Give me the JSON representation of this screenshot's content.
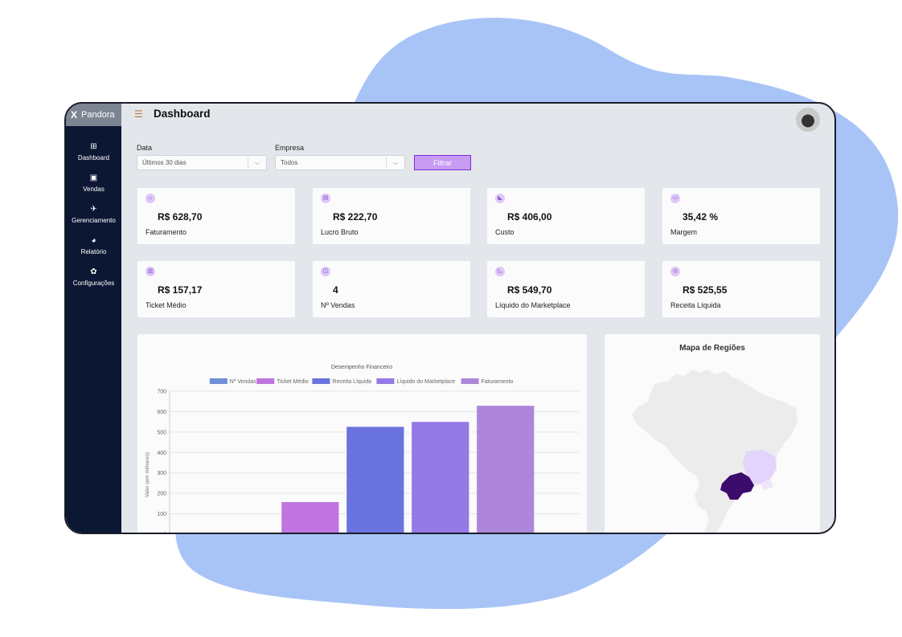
{
  "app": {
    "brand_mark": "X",
    "brand_name": "Pandora",
    "page_title": "Dashboard"
  },
  "icons": {
    "menu": "menu-icon",
    "dashboard": "grid-icon",
    "vendas": "briefcase-icon",
    "gerenciamento": "rocket-icon",
    "relatorio": "pie-chart-icon",
    "configuracoes": "settings-icon"
  },
  "sidebar": {
    "items": [
      {
        "icon": "⊞",
        "label": "Dashboard"
      },
      {
        "icon": "▣",
        "label": "Vendas"
      },
      {
        "icon": "✈",
        "label": "Gerenciamento"
      },
      {
        "icon": "◕",
        "label": "Relatório"
      },
      {
        "icon": "✿",
        "label": "Configurações"
      }
    ]
  },
  "filters": {
    "data_label": "Data",
    "data_value": "Últimos 30 dias",
    "empresa_label": "Empresa",
    "empresa_value": "Todos",
    "button_label": "Filtrar"
  },
  "cards": [
    {
      "icon": "⌂",
      "value": "R$ 628,70",
      "label": "Faturamento"
    },
    {
      "icon": "▤",
      "value": "R$ 222,70",
      "label": "Lucro Bruto"
    },
    {
      "icon": "◣",
      "value": "R$ 406,00",
      "label": "Custo"
    },
    {
      "icon": "▭",
      "value": "35,42 %",
      "label": "Margem"
    },
    {
      "icon": "▥",
      "value": "R$ 157,17",
      "label": "Ticket Médio"
    },
    {
      "icon": "◫",
      "value": "4",
      "label": "Nº Vendas"
    },
    {
      "icon": "◺",
      "value": "R$ 549,70",
      "label": "Líquido do Marketplace"
    },
    {
      "icon": "◎",
      "value": "R$ 525,55",
      "label": "Receita Líquida"
    }
  ],
  "chart_data": {
    "type": "bar",
    "title": "Desempenho Financeiro",
    "ylabel": "Valor (em milhares)",
    "ylim": [
      0,
      700
    ],
    "yticks": [
      0,
      100,
      200,
      300,
      400,
      500,
      600,
      700
    ],
    "legend_position": "top",
    "grid": true,
    "series": [
      {
        "name": "Nº Vendas",
        "value": 4,
        "color": "#6f8fd8"
      },
      {
        "name": "Ticket Médio",
        "value": 157.17,
        "color": "#bf74e0"
      },
      {
        "name": "Receita Líquida",
        "value": 525.55,
        "color": "#6a73de"
      },
      {
        "name": "Líquido do Marketplace",
        "value": 549.7,
        "color": "#937ae6"
      },
      {
        "name": "Faturamento",
        "value": 628.7,
        "color": "#ad86d9"
      }
    ]
  },
  "map": {
    "title": "Mapa de Regiões",
    "colors": {
      "base": "#ececec",
      "highlight_dark": "#3b0b6e",
      "highlight_light": "#e2d4fb"
    }
  },
  "colors": {
    "sidebar": "#0b1733",
    "accent": "#c79bf2",
    "background": "#e3e7eb",
    "blob": "#a8c4f7"
  }
}
